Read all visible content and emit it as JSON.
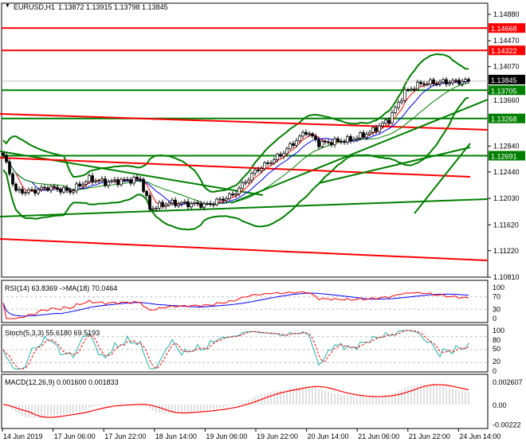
{
  "chart_data": {
    "type": "candlestick",
    "title": "EURUSD,H1",
    "ohlc": "1.13872 1.13915 1.13798 1.13845",
    "current_price": "1.13845",
    "price_range": [
      1.1081,
      1.1488
    ],
    "price_ticks": [
      "1.14880",
      "1.14470",
      "1.14070",
      "1.13660",
      "1.12840",
      "1.12440",
      "1.12030",
      "1.11620",
      "1.11220",
      "1.10810"
    ],
    "levels": [
      {
        "price": 1.14668,
        "label": "1.14668",
        "color": "#ff0000"
      },
      {
        "price": 1.14322,
        "label": "1.14322",
        "color": "#ff0000"
      },
      {
        "price": 1.13705,
        "label": "1.13705",
        "color": "#008000"
      },
      {
        "price": 1.13268,
        "label": "1.13268",
        "color": "#008000"
      },
      {
        "price": 1.12691,
        "label": "1.12691",
        "color": "#008000"
      }
    ],
    "approx_close_path": [
      [
        0,
        1.127
      ],
      [
        4,
        1.1214
      ],
      [
        9,
        1.1214
      ],
      [
        14,
        1.122
      ],
      [
        21,
        1.1214
      ],
      [
        27,
        1.1233
      ],
      [
        32,
        1.1228
      ],
      [
        43,
        1.1233
      ],
      [
        46,
        1.1187
      ],
      [
        52,
        1.1196
      ],
      [
        64,
        1.1193
      ],
      [
        72,
        1.1208
      ],
      [
        79,
        1.1245
      ],
      [
        87,
        1.127
      ],
      [
        95,
        1.1307
      ],
      [
        99,
        1.1288
      ],
      [
        109,
        1.1294
      ],
      [
        115,
        1.1305
      ],
      [
        121,
        1.1325
      ],
      [
        126,
        1.1368
      ],
      [
        131,
        1.1381
      ],
      [
        138,
        1.1383
      ],
      [
        146,
        1.13845
      ]
    ],
    "time_labels": [
      "14 Jun 2019",
      "17 Jun 06:00",
      "17 Jun 22:00",
      "18 Jun 14:00",
      "19 Jun 06:00",
      "19 Jun 22:00",
      "20 Jun 14:00",
      "21 Jun 06:00",
      "21 Jun 22:00",
      "24 Jun 14:00"
    ],
    "rsi": {
      "label": "RSI(14) 63.8369  ->MA(18) 70.0464",
      "ticks": [
        "100",
        "70",
        "30",
        "0"
      ],
      "color": "#ff0000",
      "ma_color": "#0000ff"
    },
    "stoch": {
      "label": "Stoch(5,3,3) 55.6180 69.5193",
      "ticks": [
        "100",
        "80",
        "50",
        "20",
        "0"
      ],
      "main_color": "#20b2aa",
      "signal_color": "#ff0000"
    },
    "macd": {
      "label": "MACD(12,26,9) 0.001600 0.001833",
      "ticks": [
        "0.002607",
        "0.00",
        "-0.00222"
      ],
      "hist_color": "#c0c0c0",
      "signal_color": "#ff0000"
    },
    "bollinger_color": "#008000",
    "ma_colors": [
      "#ff0000",
      "#0000ff",
      "#008000"
    ]
  }
}
